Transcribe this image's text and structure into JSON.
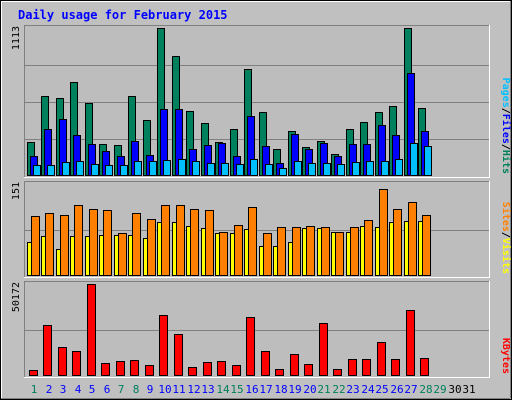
{
  "chart_data": {
    "type": "bar",
    "title": "Daily usage for February 2015",
    "days": [
      "1",
      "2",
      "3",
      "4",
      "5",
      "6",
      "7",
      "8",
      "9",
      "10",
      "11",
      "12",
      "13",
      "14",
      "15",
      "16",
      "17",
      "18",
      "19",
      "20",
      "21",
      "22",
      "23",
      "24",
      "25",
      "26",
      "27",
      "28",
      "29",
      "30",
      "31"
    ],
    "weekend_days": [
      "1",
      "7",
      "8",
      "14",
      "15",
      "21",
      "22",
      "28",
      "29"
    ],
    "panels": [
      {
        "id": "hits",
        "max_label": "1113",
        "max": 1113,
        "ylabel": [
          "Pages",
          "/",
          "Files",
          "/",
          "Hits"
        ],
        "ylabel_colors": [
          "#00c0ff",
          "#000000",
          "#0000ff",
          "#000000",
          "#00805c"
        ],
        "series": [
          {
            "name": "Hits",
            "color": "#00805c",
            "values": [
              253,
              600,
              590,
              710,
              550,
              240,
              230,
              605,
              420,
              1113,
              905,
              490,
              400,
              255,
              350,
              805,
              485,
              200,
              340,
              215,
              260,
              166,
              355,
              405,
              480,
              530,
              1113,
              510,
              0,
              0,
              0
            ]
          },
          {
            "name": "Files",
            "color": "#0000ff",
            "values": [
              150,
              356,
              425,
              306,
              240,
              190,
              150,
              260,
              160,
              505,
              505,
              205,
              230,
              250,
              150,
              450,
              226,
              100,
              315,
              200,
              245,
              150,
              240,
              240,
              385,
              308,
              778,
              336,
              0,
              0,
              0
            ]
          },
          {
            "name": "Pages",
            "color": "#00c0ff",
            "values": [
              80,
              86,
              105,
              110,
              90,
              80,
              80,
              110,
              115,
              120,
              130,
              110,
              100,
              95,
              90,
              130,
              90,
              60,
              110,
              100,
              98,
              90,
              105,
              110,
              110,
              130,
              245,
              226,
              0,
              0,
              0
            ]
          }
        ]
      },
      {
        "id": "visits",
        "max_label": "151",
        "max": 151,
        "ylabel": [
          "Sites",
          "/",
          "Visits"
        ],
        "ylabel_colors": [
          "#ff8000",
          "#000000",
          "#ffff00"
        ],
        "series": [
          {
            "name": "Visits",
            "color": "#ffff00",
            "values": [
              55,
              65,
              45,
              65,
              65,
              68,
              68,
              68,
              62,
              88,
              89,
              82,
              78,
              70,
              70,
              77,
              50,
              50,
              56,
              78,
              78,
              73,
              73,
              82,
              80,
              88,
              90,
              90,
              0,
              0,
              0
            ]
          },
          {
            "name": "Sites",
            "color": "#ff8000",
            "values": [
              98,
              104,
              100,
              116,
              110,
              108,
              70,
              104,
              94,
              117,
              116,
              110,
              108,
              72,
              84,
              113,
              70,
              81,
              80,
              82,
              80,
              73,
              80,
              92,
              142,
              110,
              122,
              100,
              0,
              0,
              0
            ]
          }
        ]
      },
      {
        "id": "kbytes",
        "max_label": "50172",
        "max": 50172,
        "ylabel": [
          "KBytes"
        ],
        "ylabel_colors": [
          "#ff0000"
        ],
        "series": [
          {
            "name": "KBytes",
            "color": "#ff0000",
            "values": [
              3500,
              28000,
              16000,
              13500,
              50172,
              7000,
              8000,
              8500,
              5800,
              33500,
              22700,
              5000,
              7800,
              8400,
              6000,
              32000,
              13500,
              4000,
              12000,
              6800,
              29000,
              3800,
              9200,
              9000,
              18500,
              9500,
              36000,
              10000,
              0,
              0,
              0
            ]
          }
        ]
      }
    ],
    "colors": {
      "background": "#c0c0c0",
      "plot_background": "#bdbdbd",
      "title": "#0000ff",
      "weekday_label": "#0000ff",
      "weekend_label": "#00805c",
      "weekend_label_empty": "#000000"
    }
  }
}
